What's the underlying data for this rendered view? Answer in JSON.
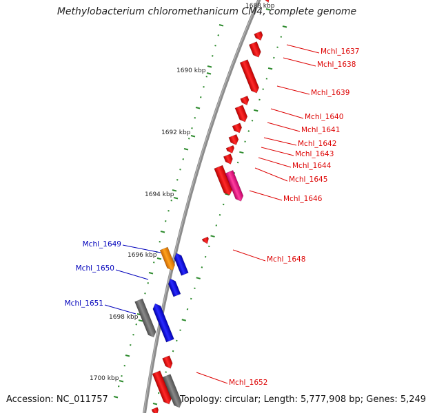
{
  "title": "Methylobacterium chloromethanicum CM4, complete genome",
  "footer": {
    "accession": "Accession: NC_011757",
    "topology": "Topology: circular; Length: 5,777,908 bp; Genes: 5,249"
  },
  "colors": {
    "backbone": "#8c8c8c",
    "tick": "#2e8b2e",
    "forward_gene": "#ee1111",
    "reverse_gene": "#1515dd",
    "label_forward": "#dd0000",
    "label_reverse": "#0000bb",
    "gene_magenta": "#ee2288",
    "gene_orange": "#ff8800",
    "gene_gray": "#6b6b6b"
  },
  "scale_ticks": [
    {
      "label": "1688 kbp",
      "faint": true
    },
    {
      "label": "1690 kbp"
    },
    {
      "label": "1692 kbp"
    },
    {
      "label": "1694 kbp"
    },
    {
      "label": "1696 kbp"
    },
    {
      "label": "1698 kbp"
    },
    {
      "label": "1700 kbp"
    }
  ],
  "gene_labels": [
    {
      "name": "Mchl_1637",
      "strand": "forward"
    },
    {
      "name": "Mchl_1638",
      "strand": "forward"
    },
    {
      "name": "Mchl_1639",
      "strand": "forward"
    },
    {
      "name": "Mchl_1640",
      "strand": "forward"
    },
    {
      "name": "Mchl_1641",
      "strand": "forward"
    },
    {
      "name": "Mchl_1642",
      "strand": "forward"
    },
    {
      "name": "Mchl_1643",
      "strand": "forward"
    },
    {
      "name": "Mchl_1644",
      "strand": "forward"
    },
    {
      "name": "Mchl_1645",
      "strand": "forward"
    },
    {
      "name": "Mchl_1646",
      "strand": "forward"
    },
    {
      "name": "Mchl_1648",
      "strand": "forward"
    },
    {
      "name": "Mchl_1649",
      "strand": "reverse"
    },
    {
      "name": "Mchl_1650",
      "strand": "reverse"
    },
    {
      "name": "Mchl_1651",
      "strand": "reverse"
    },
    {
      "name": "Mchl_1652",
      "strand": "forward"
    }
  ]
}
